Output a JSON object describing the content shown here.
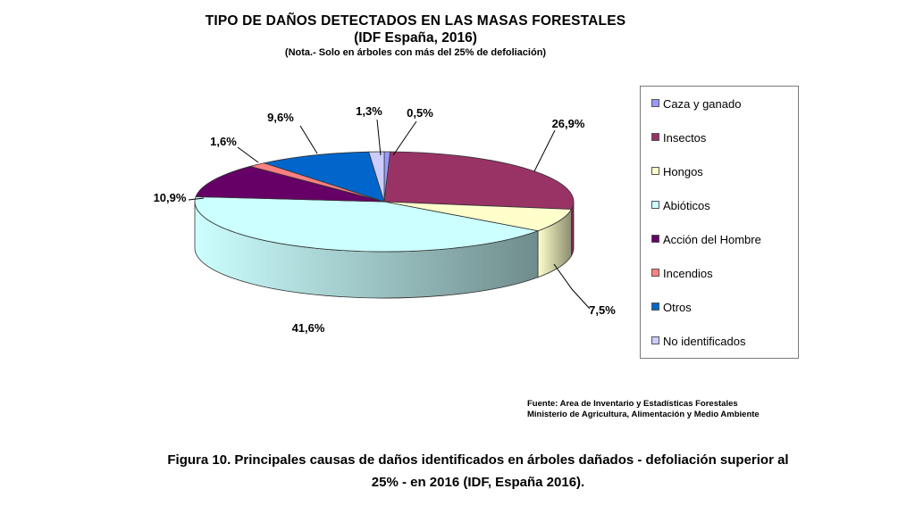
{
  "chart_data": {
    "type": "pie",
    "title": "TIPO DE DAÑOS DETECTADOS EN LAS MASAS FORESTALES",
    "subtitle": "(IDF España, 2016)",
    "note": "(Nota.- Solo en árboles con más del 25% de defoliación)",
    "legend_position": "right",
    "slices": [
      {
        "label": "Caza y ganado",
        "value": 0.5,
        "value_label": "0,5%",
        "color": "#9999ff"
      },
      {
        "label": "Insectos",
        "value": 26.9,
        "value_label": "26,9%",
        "color": "#993366"
      },
      {
        "label": "Hongos",
        "value": 7.5,
        "value_label": "7,5%",
        "color": "#ffffcc"
      },
      {
        "label": "Abióticos",
        "value": 41.6,
        "value_label": "41,6%",
        "color": "#ccffff"
      },
      {
        "label": "Acción del Hombre",
        "value": 10.9,
        "value_label": "10,9%",
        "color": "#660066"
      },
      {
        "label": "Incendios",
        "value": 1.6,
        "value_label": "1,6%",
        "color": "#ff8080"
      },
      {
        "label": "Otros",
        "value": 9.6,
        "value_label": "9,6%",
        "color": "#0066cc"
      },
      {
        "label": "No identificados",
        "value": 1.3,
        "value_label": "1,3%",
        "color": "#ccccff"
      }
    ]
  },
  "source": {
    "line1": "Fuente: Area de Inventario y Estadísticas Forestales",
    "line2": "Ministerio de Agricultura, Alimentación y Medio Ambiente"
  },
  "caption": {
    "line1": "Figura 10. Principales causas de daños identificados en árboles dañados - defoliación superior al",
    "line2": "25% - en 2016 (IDF, España 2016)."
  }
}
